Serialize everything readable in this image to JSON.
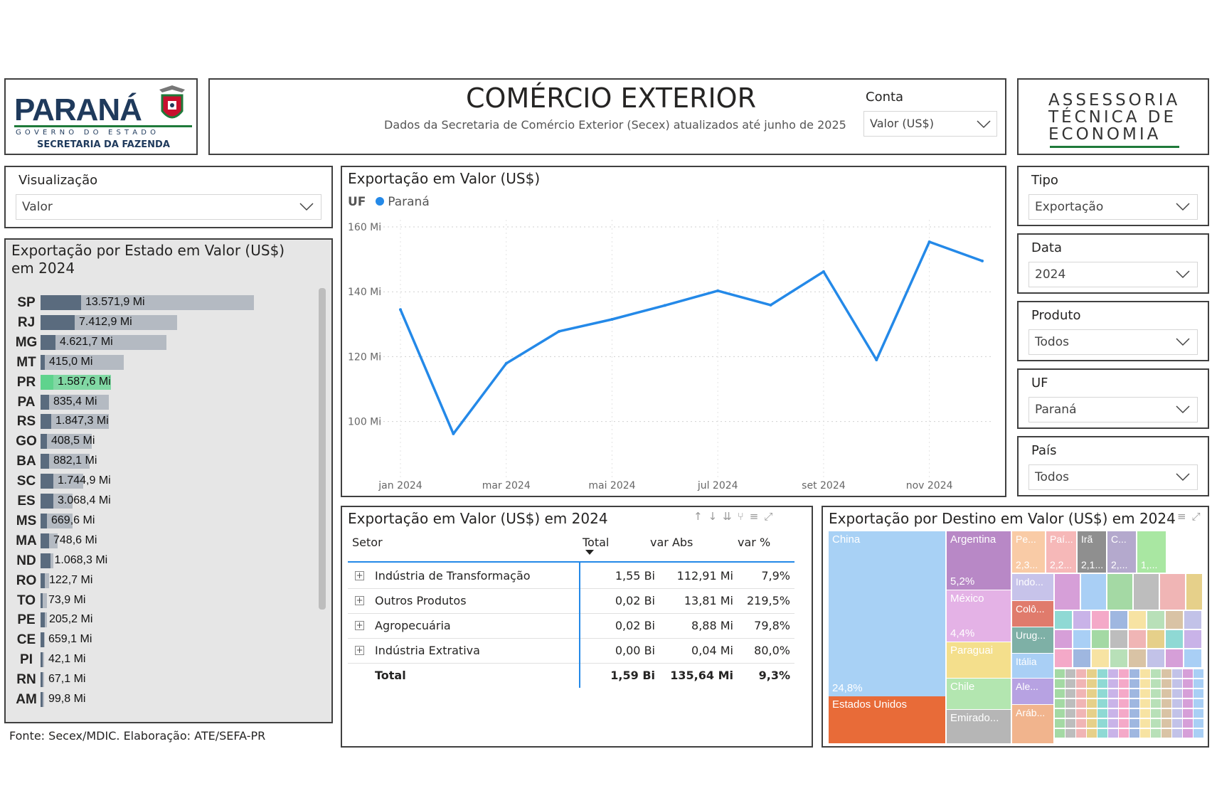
{
  "logo": {
    "name": "PARANÁ",
    "sub": "G O V E R N O   D O   E S T A D O",
    "dept": "SECRETARIA DA FAZENDA"
  },
  "header": {
    "title": "COMÉRCIO EXTERIOR",
    "subtitle": "Dados da Secretaria de Comércio Exterior (Secex) atualizados até junho de 2025",
    "conta_label": "Conta",
    "conta_value": "Valor (US$)"
  },
  "ate_logo": {
    "line1": "ASSESSORIA",
    "line2": "TÉCNICA DE",
    "line3": "ECONOMIA"
  },
  "visualizacao": {
    "label": "Visualização",
    "value": "Valor"
  },
  "filters": [
    {
      "label": "Tipo",
      "value": "Exportação"
    },
    {
      "label": "Data",
      "value": "2024"
    },
    {
      "label": "Produto",
      "value": "Todos"
    },
    {
      "label": "UF",
      "value": "Paraná"
    },
    {
      "label": "País",
      "value": "Todos"
    }
  ],
  "state_chart": {
    "title": "Exportação por Estado em Valor (US$) em 2024",
    "highlight_color": "#5fd38d",
    "rows": [
      {
        "uf": "SP",
        "label": "13.571,9 Mi",
        "total": 1.0,
        "share": 0.19
      },
      {
        "uf": "RJ",
        "label": "7.412,9 Mi",
        "total": 0.64,
        "share": 0.16
      },
      {
        "uf": "MG",
        "label": "4.621,7 Mi",
        "total": 0.59,
        "share": 0.07
      },
      {
        "uf": "MT",
        "label": "415,0 Mi",
        "total": 0.39,
        "share": 0.02
      },
      {
        "uf": "PR",
        "label": "1.587,6 Mi",
        "total": 0.33,
        "share": 0.06,
        "highlight": true
      },
      {
        "uf": "PA",
        "label": "835,4 Mi",
        "total": 0.32,
        "share": 0.04
      },
      {
        "uf": "RS",
        "label": "1.847,3 Mi",
        "total": 0.32,
        "share": 0.05
      },
      {
        "uf": "GO",
        "label": "408,5 Mi",
        "total": 0.24,
        "share": 0.03
      },
      {
        "uf": "BA",
        "label": "882,1 Mi",
        "total": 0.23,
        "share": 0.04
      },
      {
        "uf": "SC",
        "label": "1.744,9 Mi",
        "total": 0.2,
        "share": 0.06
      },
      {
        "uf": "ES",
        "label": "3.068,4 Mi",
        "total": 0.15,
        "share": 0.06
      },
      {
        "uf": "MS",
        "label": "669,6 Mi",
        "total": 0.15,
        "share": 0.03
      },
      {
        "uf": "MA",
        "label": "748,6 Mi",
        "total": 0.08,
        "share": 0.04
      },
      {
        "uf": "ND",
        "label": "1.068,3 Mi",
        "total": 0.06,
        "share": 0.045
      },
      {
        "uf": "RO",
        "label": "122,7 Mi",
        "total": 0.04,
        "share": 0.02
      },
      {
        "uf": "TO",
        "label": "73,9 Mi",
        "total": 0.03,
        "share": 0.01
      },
      {
        "uf": "PE",
        "label": "205,2 Mi",
        "total": 0.03,
        "share": 0.02
      },
      {
        "uf": "CE",
        "label": "659,1 Mi",
        "total": 0.02,
        "share": 0.015
      },
      {
        "uf": "PI",
        "label": "42,1 Mi",
        "total": 0.015,
        "share": 0.008
      },
      {
        "uf": "RN",
        "label": "67,1 Mi",
        "total": 0.015,
        "share": 0.008
      },
      {
        "uf": "AM",
        "label": "99,8 Mi",
        "total": 0.015,
        "share": 0.008
      }
    ]
  },
  "source": "Fonte: Secex/MDIC. Elaboração: ATE/SEFA-PR",
  "line_chart": {
    "title": "Exportação em Valor (US$)",
    "legend_label": "UF",
    "series_name": "Paraná",
    "series_color": "#2489e8",
    "y_ticks": [
      "160 Mi",
      "140 Mi",
      "120 Mi",
      "100 Mi"
    ],
    "x_ticks": [
      "jan 2024",
      "mar 2024",
      "mai 2024",
      "jul 2024",
      "set 2024",
      "nov 2024"
    ]
  },
  "chart_data": {
    "type": "line",
    "title": "Exportação em Valor (US$)",
    "x": [
      "jan 2024",
      "fev 2024",
      "mar 2024",
      "abr 2024",
      "mai 2024",
      "jun 2024",
      "jul 2024",
      "ago 2024",
      "set 2024",
      "out 2024",
      "nov 2024",
      "dez 2024"
    ],
    "series": [
      {
        "name": "Paraná",
        "values": [
          134.5,
          96.2,
          117.9,
          127.8,
          131.5,
          135.8,
          140.3,
          135.9,
          146.2,
          119.0,
          155.4,
          149.5
        ]
      }
    ],
    "ylim": [
      90,
      165
    ],
    "y_ticks": [
      100,
      120,
      140,
      160
    ],
    "grid": true,
    "legend": "top-left"
  },
  "table": {
    "title": "Exportação em Valor (US$) em 2024",
    "headers": [
      "Setor",
      "Total",
      "var Abs",
      "var %"
    ],
    "rows": [
      [
        "Indústria de Transformação",
        "1,55 Bi",
        "112,91 Mi",
        "7,9%"
      ],
      [
        "Outros Produtos",
        "0,02 Bi",
        "13,81 Mi",
        "219,5%"
      ],
      [
        "Agropecuária",
        "0,02 Bi",
        "8,88 Mi",
        "79,8%"
      ],
      [
        "Indústria Extrativa",
        "0,00 Bi",
        "0,04 Mi",
        "80,0%"
      ]
    ],
    "total_row": [
      "Total",
      "1,59 Bi",
      "135,64 Mi",
      "9,3%"
    ]
  },
  "treemap": {
    "title": "Exportação por Destino em Valor (US$) em 2024",
    "cells": [
      {
        "name": "China",
        "pct": "24,8%",
        "color": "#a8d1f5"
      },
      {
        "name": "Estados Unidos",
        "pct": "",
        "color": "#e86b38"
      },
      {
        "name": "Argentina",
        "pct": "5,2%",
        "color": "#b888c6"
      },
      {
        "name": "México",
        "pct": "4,4%",
        "color": "#e4b2e6"
      },
      {
        "name": "Paraguai",
        "pct": "",
        "color": "#f4df8c"
      },
      {
        "name": "Chile",
        "pct": "",
        "color": "#b3e6b0"
      },
      {
        "name": "Emirado...",
        "pct": "",
        "color": "#b6b6b6"
      },
      {
        "name": "Pe...",
        "pct": "2,3...",
        "color": "#f9cba6"
      },
      {
        "name": "Paí...",
        "pct": "2,2...",
        "color": "#f6b8b8"
      },
      {
        "name": "Irã",
        "pct": "2,1...",
        "color": "#8f8f8f"
      },
      {
        "name": "C...",
        "pct": "2,...",
        "color": "#b4a9cd"
      },
      {
        "name": "",
        "pct": "1,...",
        "color": "#a9e7a2"
      },
      {
        "name": "Indo...",
        "pct": "",
        "color": "#c7c3ea"
      },
      {
        "name": "Colô...",
        "pct": "",
        "color": "#e07b6c"
      },
      {
        "name": "Urug...",
        "pct": "",
        "color": "#7eb0a6"
      },
      {
        "name": "Itália",
        "pct": "",
        "color": "#a9cff5"
      },
      {
        "name": "Ale...",
        "pct": "",
        "color": "#b7a2e2"
      },
      {
        "name": "Aráb...",
        "pct": "",
        "color": "#f1b48d"
      }
    ]
  }
}
